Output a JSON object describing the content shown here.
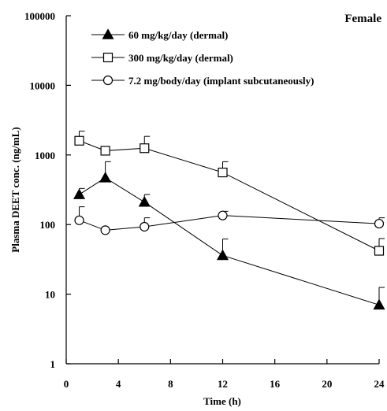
{
  "chart_data": {
    "type": "line",
    "panel_label": "Female",
    "xlabel": "Time (h)",
    "ylabel": "Plasma DEET conc. (ng/mL)",
    "xlim": [
      0,
      24
    ],
    "ylim": [
      1,
      100000
    ],
    "yscale": "log",
    "x_ticks": [
      0,
      4,
      8,
      12,
      16,
      20,
      24
    ],
    "y_ticks": [
      1,
      10,
      100,
      1000,
      10000,
      100000
    ],
    "y_tick_labels": [
      "1",
      "10",
      "100",
      "1000",
      "10000",
      "100000"
    ],
    "grid": false,
    "legend_position": "top-left",
    "series": [
      {
        "name": "60 mg/kg/day (dermal)",
        "marker": "filled-triangle",
        "x": [
          1,
          3,
          6,
          12,
          24
        ],
        "y": [
          270,
          470,
          210,
          36,
          7
        ],
        "error_upper": [
          330,
          800,
          270,
          62,
          12.5
        ]
      },
      {
        "name": "300 mg/kg/day (dermal)",
        "marker": "open-square",
        "x": [
          1,
          3,
          6,
          12,
          24
        ],
        "y": [
          1600,
          1150,
          1250,
          560,
          42
        ],
        "error_upper": [
          2200,
          1150,
          1850,
          800,
          63
        ]
      },
      {
        "name": "7.2 mg/body/day (implant subcutaneously)",
        "marker": "open-circle",
        "x": [
          1,
          3,
          6,
          12,
          24
        ],
        "y": [
          115,
          83,
          93,
          135,
          103
        ],
        "error_upper": [
          180,
          83,
          125,
          155,
          125
        ]
      }
    ]
  }
}
